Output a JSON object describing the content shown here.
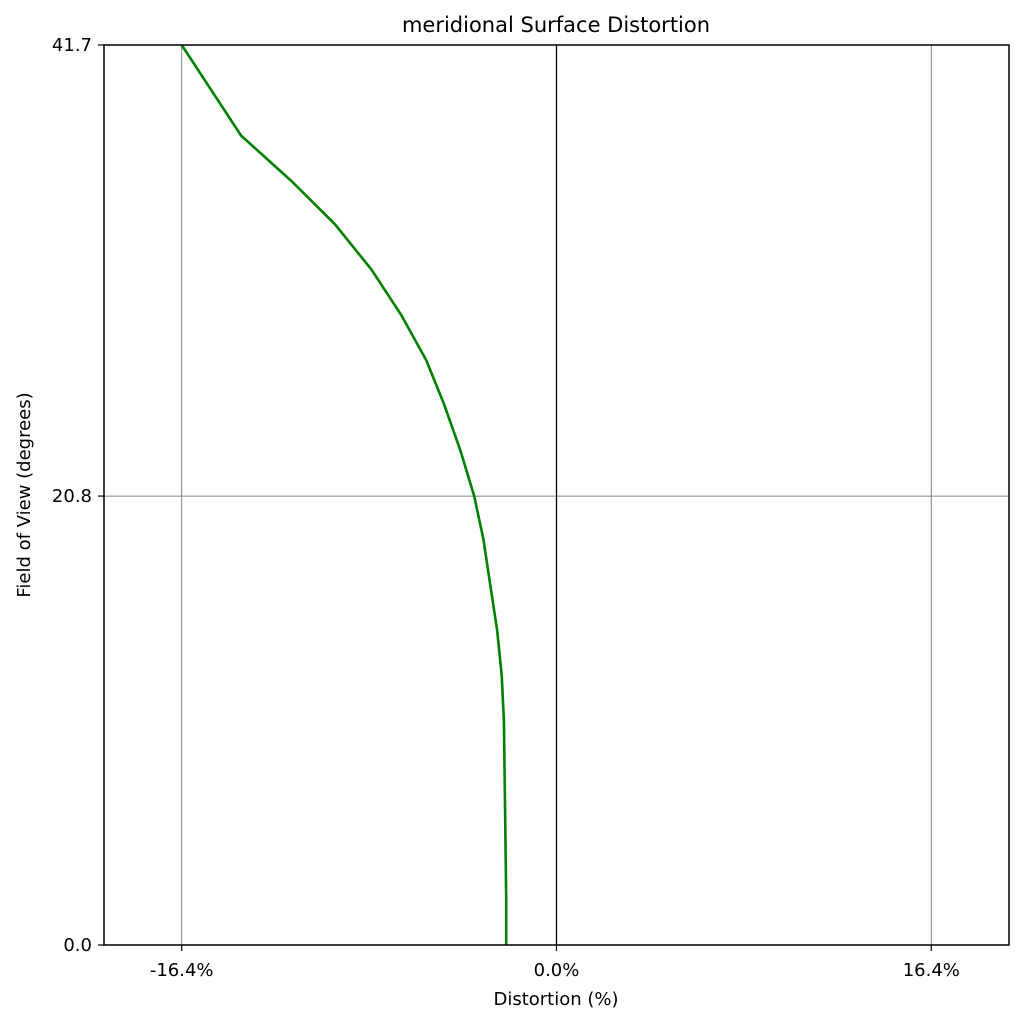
{
  "chart_data": {
    "type": "line",
    "title": "meridional Surface Distortion",
    "xlabel": "Distortion (%)",
    "ylabel": "Field of View (degrees)",
    "xlim": [
      -19.8,
      19.8
    ],
    "ylim": [
      0.0,
      41.7
    ],
    "grid": true,
    "x_ticks": [
      {
        "value": -16.4,
        "label": "-16.4%"
      },
      {
        "value": 0.0,
        "label": "0.0%"
      },
      {
        "value": 16.4,
        "label": "16.4%"
      }
    ],
    "y_ticks": [
      {
        "value": 0.0,
        "label": "0.0"
      },
      {
        "value": 20.8,
        "label": "20.8"
      },
      {
        "value": 41.7,
        "label": "41.7"
      }
    ],
    "series": [
      {
        "color": "#008000",
        "x": [
          -2.2,
          -2.2,
          -2.25,
          -2.3,
          -2.4,
          -2.6,
          -2.9,
          -3.2,
          -3.6,
          -4.2,
          -4.9,
          -5.7,
          -6.8,
          -8.1,
          -9.7,
          -11.6,
          -13.8,
          -16.4
        ],
        "y": [
          0.0,
          2.1,
          6.2,
          10.4,
          12.5,
          14.6,
          16.7,
          18.8,
          20.8,
          22.9,
          25.0,
          27.1,
          29.2,
          31.3,
          33.4,
          35.4,
          37.5,
          41.7
        ]
      }
    ]
  }
}
